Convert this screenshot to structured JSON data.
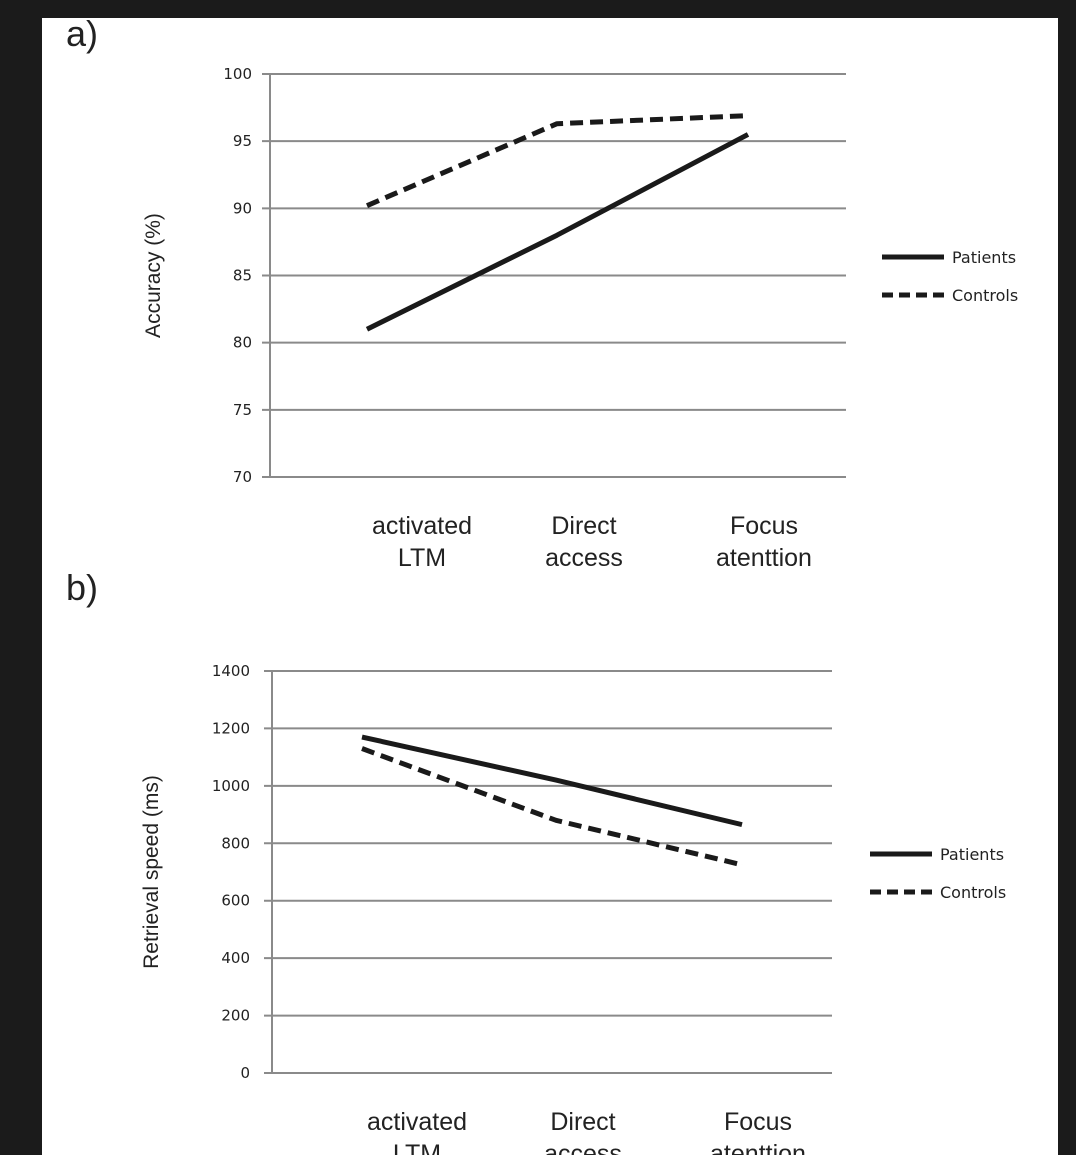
{
  "panels": [
    {
      "label": "a)"
    },
    {
      "label": "b)"
    }
  ],
  "chart_data": [
    {
      "type": "line",
      "ylabel": "Accuracy (%)",
      "xlabel": "",
      "ylim": [
        70,
        100
      ],
      "yticks": [
        70,
        75,
        80,
        85,
        90,
        95,
        100
      ],
      "categories": [
        [
          "activated",
          "LTM"
        ],
        [
          "Direct",
          "access"
        ],
        [
          "Focus",
          "atenttion"
        ]
      ],
      "grid": true,
      "legend_position": "right",
      "series": [
        {
          "name": "Patients",
          "style": "solid",
          "values": [
            81,
            88,
            95.5
          ]
        },
        {
          "name": "Controls",
          "style": "dashed",
          "values": [
            90.2,
            96.3,
            96.9
          ]
        }
      ]
    },
    {
      "type": "line",
      "ylabel": "Retrieval speed (ms)",
      "xlabel": "",
      "ylim": [
        0,
        1400
      ],
      "yticks": [
        0,
        200,
        400,
        600,
        800,
        1000,
        1200,
        1400
      ],
      "categories": [
        [
          "activated",
          "LTM"
        ],
        [
          "Direct",
          "access"
        ],
        [
          "Focus",
          "atenttion"
        ]
      ],
      "grid": true,
      "legend_position": "right",
      "series": [
        {
          "name": "Patients",
          "style": "solid",
          "values": [
            1170,
            1020,
            865
          ]
        },
        {
          "name": "Controls",
          "style": "dashed",
          "values": [
            1130,
            880,
            725
          ]
        }
      ]
    }
  ]
}
